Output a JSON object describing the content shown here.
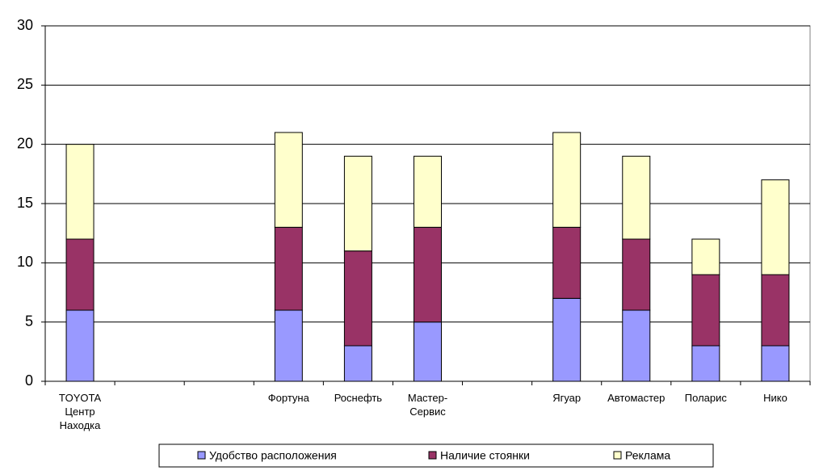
{
  "chart_data": {
    "type": "stacked_bar",
    "categories": [
      "TOYOTA Центр Находка",
      null,
      null,
      "Фортуна",
      "Роснефть",
      "Мастер-Сервис",
      null,
      "Ягуар",
      "Автомастер",
      "Поларис",
      "Нико"
    ],
    "series": [
      {
        "name": "Удобство расположения",
        "color": "#9999ff",
        "values": [
          6,
          null,
          null,
          6,
          3,
          5,
          null,
          7,
          6,
          3,
          3
        ]
      },
      {
        "name": "Наличие стоянки",
        "color": "#993366",
        "values": [
          6,
          null,
          null,
          7,
          8,
          8,
          null,
          6,
          6,
          6,
          6
        ]
      },
      {
        "name": "Реклама",
        "color": "#ffffcc",
        "values": [
          8,
          null,
          null,
          8,
          8,
          6,
          null,
          8,
          7,
          3,
          8
        ]
      }
    ],
    "ylim": [
      0,
      30
    ],
    "yticks": [
      0,
      5,
      10,
      15,
      20,
      25,
      30
    ],
    "grid": true,
    "legend": "bottom"
  }
}
